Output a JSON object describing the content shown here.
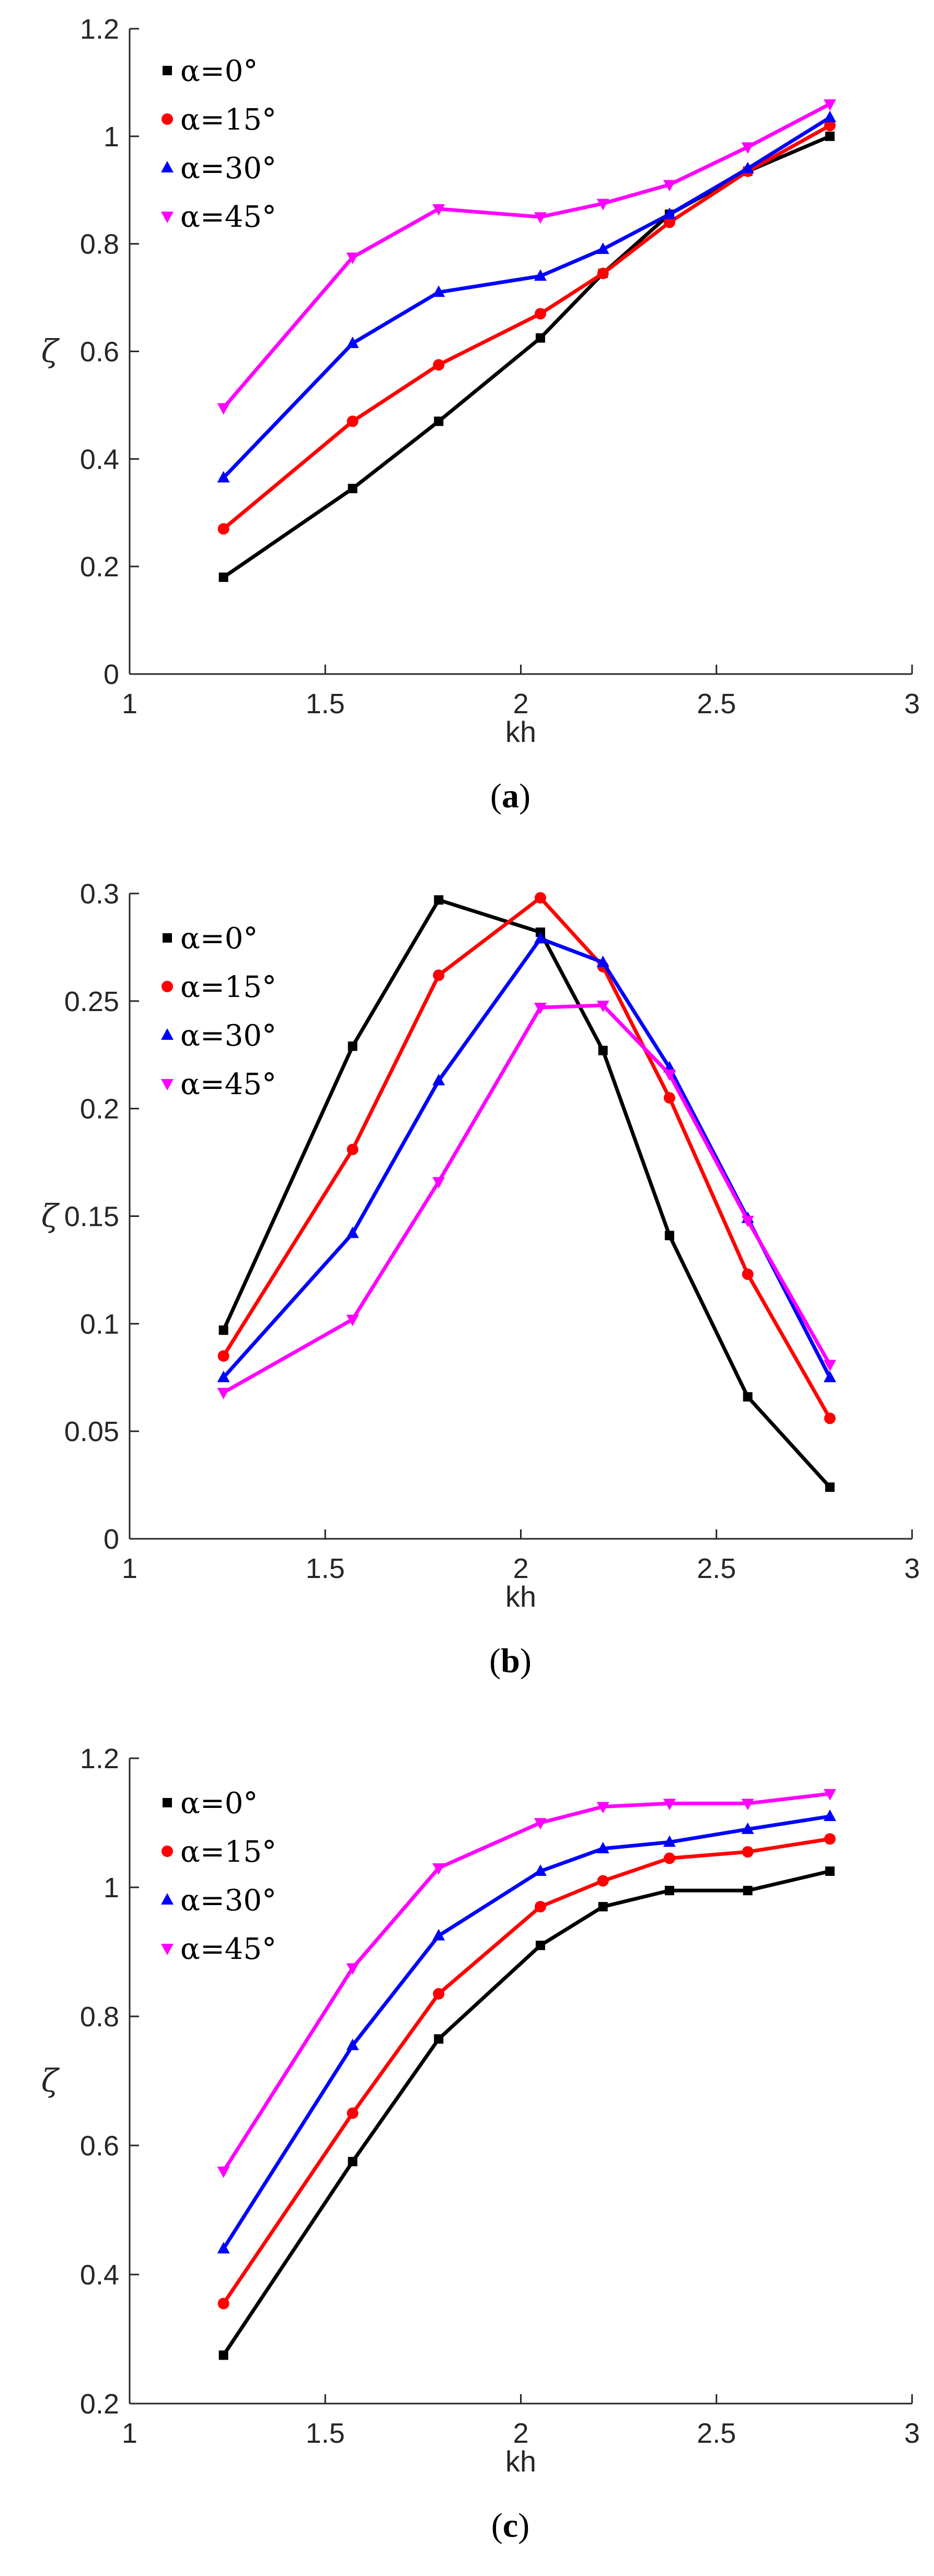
{
  "chart_data": [
    {
      "type": "line",
      "panel_label": "a",
      "xlabel": "kh",
      "ylabel": "ζ",
      "xlim": [
        1,
        3
      ],
      "ylim": [
        0,
        1.2
      ],
      "xticks": [
        "1",
        "1.5",
        "2",
        "2.5",
        "3"
      ],
      "yticks": [
        "0",
        "0.2",
        "0.4",
        "0.6",
        "0.8",
        "1",
        "1.2"
      ],
      "legend_placement": "top-left",
      "grid": false,
      "x": [
        1.24,
        1.57,
        1.79,
        2.05,
        2.21,
        2.38,
        2.58,
        2.79
      ],
      "series": [
        {
          "name": "α=0°",
          "color": "#000000",
          "marker": "square",
          "values": [
            0.18,
            0.345,
            0.47,
            0.625,
            0.745,
            0.855,
            0.935,
            1.0
          ]
        },
        {
          "name": "α=15°",
          "color": "#ff0000",
          "marker": "circle",
          "values": [
            0.27,
            0.47,
            0.575,
            0.67,
            0.745,
            0.84,
            0.935,
            1.02
          ]
        },
        {
          "name": "α=30°",
          "color": "#0000ff",
          "marker": "triangle-up",
          "values": [
            0.365,
            0.615,
            0.71,
            0.74,
            0.79,
            0.855,
            0.94,
            1.035
          ]
        },
        {
          "name": "α=45°",
          "color": "#ff00ff",
          "marker": "triangle-down",
          "values": [
            0.495,
            0.775,
            0.865,
            0.85,
            0.875,
            0.91,
            0.98,
            1.06
          ]
        }
      ]
    },
    {
      "type": "line",
      "panel_label": "b",
      "xlabel": "kh",
      "ylabel": "ζ",
      "xlim": [
        1,
        3
      ],
      "ylim": [
        0,
        0.3
      ],
      "xticks": [
        "1",
        "1.5",
        "2",
        "2.5",
        "3"
      ],
      "yticks": [
        "0",
        "0.05",
        "0.1",
        "0.15",
        "0.2",
        "0.25",
        "0.3"
      ],
      "legend_placement": "top-left",
      "grid": false,
      "x": [
        1.24,
        1.57,
        1.79,
        2.05,
        2.21,
        2.38,
        2.58,
        2.79
      ],
      "series": [
        {
          "name": "α=0°",
          "color": "#000000",
          "marker": "square",
          "values": [
            0.097,
            0.229,
            0.297,
            0.282,
            0.227,
            0.141,
            0.066,
            0.024
          ]
        },
        {
          "name": "α=15°",
          "color": "#ff0000",
          "marker": "circle",
          "values": [
            0.085,
            0.181,
            0.262,
            0.298,
            0.266,
            0.205,
            0.123,
            0.056
          ]
        },
        {
          "name": "α=30°",
          "color": "#0000ff",
          "marker": "triangle-up",
          "values": [
            0.075,
            0.142,
            0.213,
            0.279,
            0.268,
            0.219,
            0.149,
            0.075
          ]
        },
        {
          "name": "α=45°",
          "color": "#ff00ff",
          "marker": "triangle-down",
          "values": [
            0.068,
            0.102,
            0.166,
            0.247,
            0.248,
            0.216,
            0.148,
            0.081
          ]
        }
      ]
    },
    {
      "type": "line",
      "panel_label": "c",
      "xlabel": "kh",
      "ylabel": "ζ",
      "xlim": [
        1,
        3
      ],
      "ylim": [
        0.2,
        1.2
      ],
      "xticks": [
        "1",
        "1.5",
        "2",
        "2.5",
        "3"
      ],
      "yticks": [
        "0.2",
        "0.4",
        "0.6",
        "0.8",
        "1",
        "1.2"
      ],
      "legend_placement": "top-left",
      "grid": false,
      "x": [
        1.24,
        1.57,
        1.79,
        2.05,
        2.21,
        2.38,
        2.58,
        2.79
      ],
      "series": [
        {
          "name": "α=0°",
          "color": "#000000",
          "marker": "square",
          "values": [
            0.275,
            0.575,
            0.765,
            0.91,
            0.97,
            0.995,
            0.995,
            1.025
          ]
        },
        {
          "name": "α=15°",
          "color": "#ff0000",
          "marker": "circle",
          "values": [
            0.355,
            0.65,
            0.835,
            0.97,
            1.01,
            1.045,
            1.055,
            1.075
          ]
        },
        {
          "name": "α=30°",
          "color": "#0000ff",
          "marker": "triangle-up",
          "values": [
            0.44,
            0.755,
            0.925,
            1.025,
            1.06,
            1.07,
            1.09,
            1.11
          ]
        },
        {
          "name": "α=45°",
          "color": "#ff00ff",
          "marker": "triangle-down",
          "values": [
            0.56,
            0.875,
            1.03,
            1.1,
            1.125,
            1.13,
            1.13,
            1.145
          ]
        }
      ]
    }
  ]
}
